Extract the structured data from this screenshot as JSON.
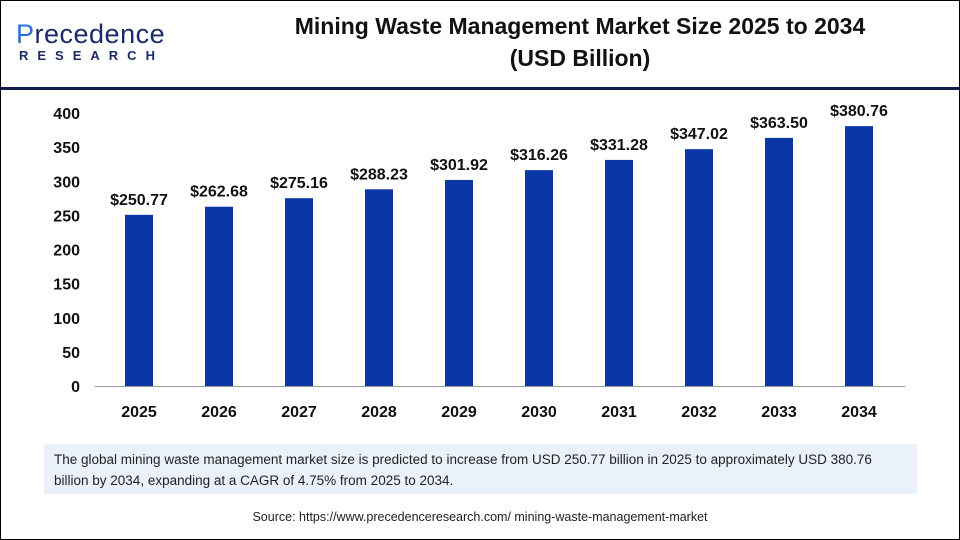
{
  "logo": {
    "line1": "Precedence",
    "line2": "RESEARCH"
  },
  "chart_data": {
    "type": "bar",
    "title": "Mining Waste Management Market  Size 2025 to 2034 (USD Billion)",
    "categories": [
      "2025",
      "2026",
      "2027",
      "2028",
      "2029",
      "2030",
      "2031",
      "2032",
      "2033",
      "2034"
    ],
    "values": [
      250.77,
      262.68,
      275.16,
      288.23,
      301.92,
      316.26,
      331.28,
      347.02,
      363.5,
      380.76
    ],
    "data_labels": [
      "$250.77",
      "$262.68",
      "$275.16",
      "$288.23",
      "$301.92",
      "$316.26",
      "$331.28",
      "$347.02",
      "$363.50",
      "$380.76"
    ],
    "ylim": [
      0,
      400
    ],
    "yticks": [
      0,
      50,
      100,
      150,
      200,
      250,
      300,
      350,
      400
    ],
    "grid": false,
    "bar_color": "#0b37a6"
  },
  "title_line1": "Mining Waste Management Market  Size 2025 to 2034",
  "title_line2": "(USD Billion)",
  "summary": "The global mining waste management market size is predicted to increase from USD 250.77 billion in 2025 to approximately USD 380.76 billion by 2034, expanding at a CAGR of 4.75% from 2025 to 2034.",
  "source": "Source: https://www.precedenceresearch.com/ mining-waste-management-market"
}
